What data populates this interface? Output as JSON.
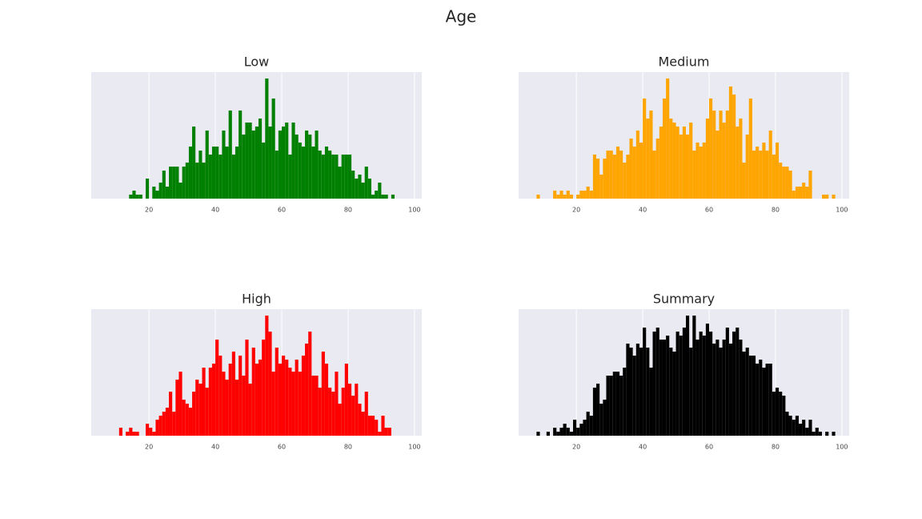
{
  "title": "Age",
  "chart_data": [
    {
      "type": "histogram",
      "title": "Low",
      "color": "#008000",
      "xlim": [
        2.6,
        102.2
      ],
      "ylim": [
        0,
        31.6
      ],
      "xticks": [
        20,
        40,
        60,
        80,
        100
      ],
      "grid": true,
      "bins": [
        14,
        15,
        16,
        17,
        18,
        19,
        20,
        21,
        22,
        23,
        24,
        25,
        26,
        27,
        28,
        29,
        30,
        31,
        32,
        33,
        34,
        35,
        36,
        37,
        38,
        39,
        40,
        41,
        42,
        43,
        44,
        45,
        46,
        47,
        48,
        49,
        50,
        51,
        52,
        53,
        54,
        55,
        56,
        57,
        58,
        59,
        60,
        61,
        62,
        63,
        64,
        65,
        66,
        67,
        68,
        69,
        70,
        71,
        72,
        73,
        74,
        75,
        76,
        77,
        78,
        79,
        80,
        81,
        82,
        83,
        84,
        85,
        86,
        87,
        88,
        89,
        90,
        91,
        92,
        93,
        94
      ],
      "counts": [
        1,
        2,
        1,
        1,
        0,
        5,
        0,
        3,
        2,
        4,
        7,
        3,
        8,
        8,
        8,
        4,
        8,
        9,
        13,
        18,
        9,
        12,
        9,
        17,
        11,
        13,
        13,
        11,
        17,
        13,
        22,
        11,
        13,
        22,
        16,
        19,
        19,
        17,
        18,
        20,
        14,
        30,
        18,
        25,
        12,
        17,
        18,
        19,
        11,
        19,
        16,
        14,
        13,
        17,
        16,
        13,
        17,
        12,
        11,
        13,
        12,
        11,
        11,
        8,
        11,
        11,
        11,
        7,
        5,
        6,
        4,
        8,
        5,
        1,
        2,
        4,
        1,
        1,
        0,
        1
      ]
    },
    {
      "type": "histogram",
      "title": "Medium",
      "color": "#ffa500",
      "xlim": [
        2.6,
        102.2
      ],
      "ylim": [
        0,
        31.6
      ],
      "xticks": [
        20,
        40,
        60,
        80,
        100
      ],
      "grid": true,
      "bins": [
        8,
        9,
        10,
        11,
        12,
        13,
        14,
        15,
        16,
        17,
        18,
        19,
        20,
        21,
        22,
        23,
        24,
        25,
        26,
        27,
        28,
        29,
        30,
        31,
        32,
        33,
        34,
        35,
        36,
        37,
        38,
        39,
        40,
        41,
        42,
        43,
        44,
        45,
        46,
        47,
        48,
        49,
        50,
        51,
        52,
        53,
        54,
        55,
        56,
        57,
        58,
        59,
        60,
        61,
        62,
        63,
        64,
        65,
        66,
        67,
        68,
        69,
        70,
        71,
        72,
        73,
        74,
        75,
        76,
        77,
        78,
        79,
        80,
        81,
        82,
        83,
        84,
        85,
        86,
        87,
        88,
        89,
        90,
        91,
        92,
        93,
        94,
        95,
        96,
        97,
        98
      ],
      "counts": [
        1,
        0,
        0,
        0,
        0,
        2,
        1,
        2,
        1,
        2,
        1,
        0,
        1,
        2,
        2,
        3,
        2,
        11,
        10,
        6,
        10,
        12,
        12,
        11,
        13,
        12,
        9,
        11,
        15,
        13,
        17,
        14,
        25,
        20,
        22,
        12,
        15,
        18,
        25,
        30,
        20,
        19,
        18,
        16,
        18,
        16,
        19,
        12,
        14,
        13,
        14,
        20,
        25,
        22,
        17,
        22,
        19,
        22,
        28,
        26,
        18,
        20,
        9,
        16,
        25,
        12,
        13,
        12,
        14,
        12,
        17,
        11,
        14,
        9,
        8,
        8,
        7,
        2,
        3,
        3,
        4,
        3,
        7,
        0,
        0,
        0,
        1,
        1,
        0,
        1
      ]
    },
    {
      "type": "histogram",
      "title": "High",
      "color": "#ff0000",
      "xlim": [
        2.6,
        102.2
      ],
      "ylim": [
        0,
        31.6
      ],
      "xticks": [
        20,
        40,
        60,
        80,
        100
      ],
      "grid": true,
      "bins": [
        11,
        12,
        13,
        14,
        15,
        16,
        17,
        18,
        19,
        20,
        21,
        22,
        23,
        24,
        25,
        26,
        27,
        28,
        29,
        30,
        31,
        32,
        33,
        34,
        35,
        36,
        37,
        38,
        39,
        40,
        41,
        42,
        43,
        44,
        45,
        46,
        47,
        48,
        49,
        50,
        51,
        52,
        53,
        54,
        55,
        56,
        57,
        58,
        59,
        60,
        61,
        62,
        63,
        64,
        65,
        66,
        67,
        68,
        69,
        70,
        71,
        72,
        73,
        74,
        75,
        76,
        77,
        78,
        79,
        80,
        81,
        82,
        83,
        84,
        85,
        86,
        87,
        88,
        89,
        90,
        91,
        92,
        93,
        94
      ],
      "counts": [
        2,
        0,
        1,
        2,
        1,
        1,
        0,
        0,
        3,
        2,
        1,
        4,
        5,
        6,
        7,
        11,
        6,
        14,
        16,
        9,
        8,
        7,
        11,
        14,
        13,
        17,
        12,
        17,
        18,
        24,
        20,
        16,
        14,
        18,
        21,
        14,
        20,
        15,
        24,
        13,
        22,
        18,
        19,
        24,
        30,
        26,
        16,
        22,
        18,
        20,
        19,
        17,
        16,
        19,
        16,
        20,
        23,
        26,
        15,
        15,
        12,
        21,
        18,
        12,
        11,
        16,
        8,
        12,
        18,
        13,
        10,
        13,
        8,
        6,
        11,
        5,
        5,
        4,
        1,
        5,
        2,
        2,
        0
      ]
    },
    {
      "type": "histogram",
      "title": "Summary",
      "color": "#000000",
      "xlim": [
        2.6,
        102.2
      ],
      "ylim": [
        0,
        31.6
      ],
      "xticks": [
        20,
        40,
        60,
        80,
        100
      ],
      "grid": true,
      "bins": [
        8,
        9,
        10,
        11,
        12,
        13,
        14,
        15,
        16,
        17,
        18,
        19,
        20,
        21,
        22,
        23,
        24,
        25,
        26,
        27,
        28,
        29,
        30,
        31,
        32,
        33,
        34,
        35,
        36,
        37,
        38,
        39,
        40,
        41,
        42,
        43,
        44,
        45,
        46,
        47,
        48,
        49,
        50,
        51,
        52,
        53,
        54,
        55,
        56,
        57,
        58,
        59,
        60,
        61,
        62,
        63,
        64,
        65,
        66,
        67,
        68,
        69,
        70,
        71,
        72,
        73,
        74,
        75,
        76,
        77,
        78,
        79,
        80,
        81,
        82,
        83,
        84,
        85,
        86,
        87,
        88,
        89,
        90,
        91,
        92,
        93,
        94,
        95,
        96,
        97,
        98
      ],
      "counts": [
        1,
        0,
        0,
        1,
        0,
        2,
        1,
        2,
        3,
        2,
        1,
        4,
        2,
        3,
        4,
        6,
        5,
        12,
        13,
        8,
        9,
        15,
        15,
        16,
        16,
        15,
        17,
        23,
        22,
        20,
        23,
        22,
        27,
        22,
        17,
        26,
        27,
        24,
        24,
        25,
        22,
        21,
        26,
        25,
        27,
        30,
        22,
        30,
        24,
        26,
        25,
        28,
        26,
        23,
        24,
        22,
        24,
        27,
        23,
        26,
        27,
        24,
        21,
        22,
        20,
        20,
        18,
        19,
        17,
        18,
        18,
        11,
        12,
        11,
        10,
        6,
        5,
        4,
        5,
        3,
        4,
        2,
        4,
        1,
        2,
        1,
        0,
        1,
        0,
        1
      ]
    }
  ]
}
